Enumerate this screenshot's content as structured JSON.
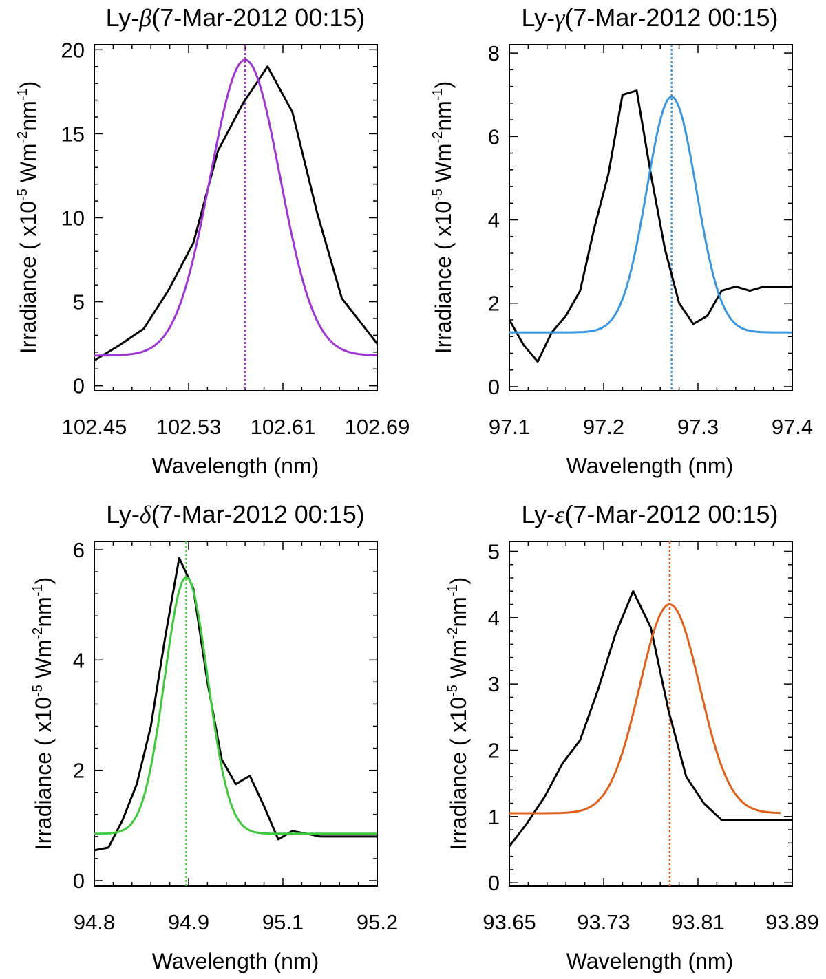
{
  "chart_data": [
    {
      "type": "line",
      "title_prefix": "Ly-",
      "title_symbol": "β",
      "title_suffix": "(7-Mar-2012 00:15)",
      "xlabel": "Wavelength (nm)",
      "ylabel": "Irradiance ( x10-5 Wm-2nm-1)",
      "xlim": [
        102.45,
        102.69
      ],
      "ylim": [
        -0.3,
        20.3
      ],
      "xticks": [
        "102.45",
        "102.53",
        "102.61",
        "102.69"
      ],
      "yticks": [
        "0",
        "5",
        "10",
        "15",
        "20"
      ],
      "fit_color": "#a033d4",
      "center_wavelength": 102.578,
      "series": [
        {
          "kind": "observed",
          "x": [
            102.45,
            102.471,
            102.492,
            102.513,
            102.534,
            102.555,
            102.576,
            102.597,
            102.618,
            102.639,
            102.66,
            102.69
          ],
          "y": [
            1.5,
            2.4,
            3.4,
            5.7,
            8.5,
            14.0,
            16.8,
            19.0,
            16.3,
            10.3,
            5.2,
            2.5
          ]
        },
        {
          "kind": "fit",
          "baseline": 1.8,
          "amplitude": 17.6,
          "center": 102.578,
          "sigma": 0.0295
        }
      ]
    },
    {
      "type": "line",
      "title_prefix": "Ly-",
      "title_symbol": "γ",
      "title_suffix": "(7-Mar-2012 00:15)",
      "xlabel": "Wavelength (nm)",
      "ylabel": "Irradiance ( x10-5 Wm-2nm-1)",
      "xlim": [
        97.1,
        97.4
      ],
      "ylim": [
        -0.1,
        8.2
      ],
      "xticks": [
        "97.1",
        "97.2",
        "97.3",
        "97.4"
      ],
      "yticks": [
        "0",
        "2",
        "4",
        "6",
        "8"
      ],
      "fit_color": "#3996e0",
      "center_wavelength": 97.272,
      "series": [
        {
          "kind": "observed",
          "x": [
            97.1,
            97.115,
            97.13,
            97.145,
            97.16,
            97.175,
            97.19,
            97.205,
            97.22,
            97.235,
            97.25,
            97.265,
            97.28,
            97.295,
            97.31,
            97.325,
            97.34,
            97.355,
            97.37,
            97.385,
            97.4
          ],
          "y": [
            1.6,
            1.0,
            0.6,
            1.3,
            1.7,
            2.3,
            3.8,
            5.1,
            7.0,
            7.1,
            5.1,
            3.3,
            2.0,
            1.5,
            1.7,
            2.3,
            2.4,
            2.3,
            2.4,
            2.4,
            2.4
          ]
        },
        {
          "kind": "fit",
          "baseline": 1.3,
          "amplitude": 5.65,
          "center": 97.272,
          "sigma": 0.0263
        }
      ]
    },
    {
      "type": "line",
      "title_prefix": "Ly-",
      "title_symbol": "δ",
      "title_suffix": "(7-Mar-2012 00:15)",
      "xlabel": "Wavelength (nm)",
      "ylabel": "Irradiance ( x10-5 Wm-2nm-1)",
      "xlim": [
        94.8,
        95.2
      ],
      "ylim": [
        -0.1,
        6.15
      ],
      "xticks": [
        "94.8",
        "94.9",
        "95.1",
        "95.2"
      ],
      "yticks": [
        "0",
        "2",
        "4",
        "6"
      ],
      "fit_color": "#3ec93c",
      "center_wavelength": 94.93,
      "series": [
        {
          "kind": "observed",
          "x": [
            94.8,
            94.82,
            94.84,
            94.86,
            94.88,
            94.9,
            94.92,
            94.94,
            94.96,
            94.98,
            95.0,
            95.02,
            95.04,
            95.06,
            95.08,
            95.1,
            95.12,
            95.14,
            95.16,
            95.18,
            95.2
          ],
          "y": [
            0.55,
            0.6,
            1.1,
            1.75,
            2.8,
            4.4,
            5.85,
            5.3,
            3.6,
            2.2,
            1.75,
            1.9,
            1.35,
            0.75,
            0.9,
            0.85,
            0.8,
            0.8,
            0.8,
            0.8,
            0.8
          ]
        },
        {
          "kind": "fit",
          "baseline": 0.85,
          "amplitude": 4.65,
          "center": 94.93,
          "sigma": 0.0305
        }
      ]
    },
    {
      "type": "line",
      "title_prefix": "Ly-",
      "title_symbol": "ε",
      "title_suffix": "(7-Mar-2012 00:15)",
      "xlabel": "Wavelength (nm)",
      "ylabel": "Irradiance ( x10-5 Wm-2nm-1)",
      "xlim": [
        93.65,
        93.89
      ],
      "ylim": [
        -0.05,
        5.15
      ],
      "xticks": [
        "93.65",
        "93.73",
        "93.81",
        "93.89"
      ],
      "yticks": [
        "0",
        "1",
        "2",
        "3",
        "4",
        "5"
      ],
      "fit_color": "#e0601a",
      "center_wavelength": 93.786,
      "series": [
        {
          "kind": "observed",
          "x": [
            93.65,
            93.665,
            93.68,
            93.695,
            93.71,
            93.725,
            93.74,
            93.755,
            93.77,
            93.785,
            93.8,
            93.815,
            93.83,
            93.845,
            93.86,
            93.875,
            93.89
          ],
          "y": [
            0.55,
            0.9,
            1.3,
            1.8,
            2.15,
            2.9,
            3.75,
            4.4,
            3.85,
            2.6,
            1.6,
            1.2,
            0.95,
            0.95,
            0.95,
            0.95,
            0.95
          ]
        },
        {
          "kind": "fit",
          "baseline": 1.05,
          "amplitude": 3.15,
          "center": 93.786,
          "sigma": 0.0255,
          "x_end": 93.88
        }
      ]
    }
  ]
}
